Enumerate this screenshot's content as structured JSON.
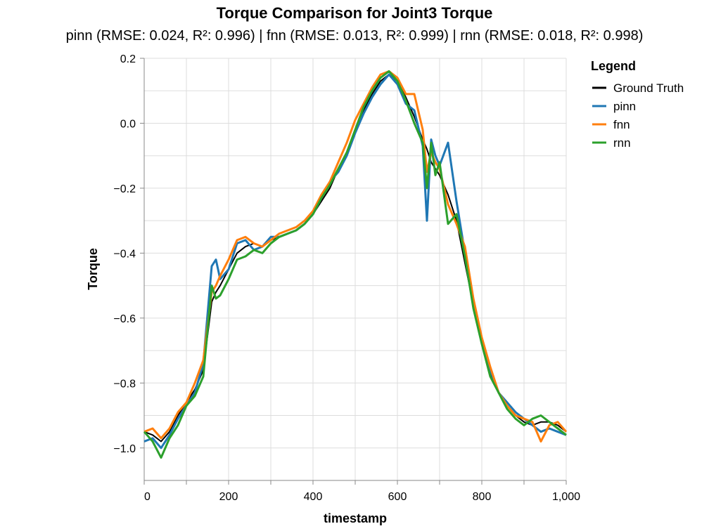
{
  "chart_data": {
    "type": "line",
    "title": "Torque Comparison for Joint3 Torque",
    "subtitle": "pinn (RMSE: 0.024, R²: 0.996) | fnn (RMSE: 0.013, R²: 0.999) | rnn (RMSE: 0.018, R²: 0.998)",
    "xlabel": "timestamp",
    "ylabel": "Torque",
    "xlim": [
      0,
      1000
    ],
    "ylim": [
      -1.1,
      0.2
    ],
    "xticks": [
      0,
      200,
      400,
      600,
      800,
      1000
    ],
    "xtick_labels": [
      "0",
      "200",
      "400",
      "600",
      "800",
      "1,000"
    ],
    "yticks": [
      0.2,
      0.0,
      -0.2,
      -0.4,
      -0.6,
      -0.8,
      -1.0
    ],
    "ytick_labels": [
      "0.2",
      "0.0",
      "−0.2",
      "−0.4",
      "−0.6",
      "−0.8",
      "−1.0"
    ],
    "grid": true,
    "legend": {
      "title": "Legend",
      "placement": "top-right"
    },
    "x": [
      0,
      20,
      40,
      60,
      80,
      100,
      120,
      140,
      160,
      170,
      180,
      200,
      220,
      240,
      260,
      280,
      300,
      320,
      340,
      360,
      380,
      400,
      420,
      440,
      460,
      480,
      500,
      520,
      540,
      560,
      580,
      600,
      620,
      640,
      660,
      670,
      680,
      690,
      700,
      720,
      740,
      760,
      780,
      800,
      820,
      840,
      860,
      880,
      900,
      920,
      940,
      960,
      980,
      1000
    ],
    "series": [
      {
        "name": "Ground Truth",
        "color": "#000000",
        "values": [
          -0.95,
          -0.96,
          -0.98,
          -0.95,
          -0.9,
          -0.86,
          -0.82,
          -0.76,
          -0.55,
          -0.52,
          -0.5,
          -0.45,
          -0.4,
          -0.38,
          -0.37,
          -0.38,
          -0.36,
          -0.35,
          -0.34,
          -0.33,
          -0.31,
          -0.28,
          -0.24,
          -0.2,
          -0.14,
          -0.09,
          -0.02,
          0.04,
          0.09,
          0.13,
          0.15,
          0.13,
          0.08,
          0.02,
          -0.05,
          -0.08,
          -0.12,
          -0.14,
          -0.16,
          -0.22,
          -0.3,
          -0.43,
          -0.56,
          -0.68,
          -0.77,
          -0.83,
          -0.87,
          -0.9,
          -0.92,
          -0.93,
          -0.92,
          -0.92,
          -0.93,
          -0.95
        ]
      },
      {
        "name": "pinn",
        "color": "#1f77b4",
        "values": [
          -0.98,
          -0.97,
          -1.0,
          -0.96,
          -0.91,
          -0.87,
          -0.83,
          -0.74,
          -0.44,
          -0.42,
          -0.48,
          -0.45,
          -0.37,
          -0.36,
          -0.39,
          -0.38,
          -0.35,
          -0.35,
          -0.34,
          -0.33,
          -0.31,
          -0.28,
          -0.23,
          -0.18,
          -0.15,
          -0.1,
          -0.03,
          0.03,
          0.08,
          0.12,
          0.15,
          0.12,
          0.06,
          0.04,
          -0.07,
          -0.3,
          -0.05,
          -0.1,
          -0.13,
          -0.06,
          -0.24,
          -0.4,
          -0.55,
          -0.67,
          -0.76,
          -0.83,
          -0.86,
          -0.89,
          -0.91,
          -0.93,
          -0.95,
          -0.94,
          -0.95,
          -0.96
        ]
      },
      {
        "name": "fnn",
        "color": "#ff7f0e",
        "values": [
          -0.95,
          -0.94,
          -0.97,
          -0.94,
          -0.89,
          -0.86,
          -0.8,
          -0.73,
          -0.52,
          -0.5,
          -0.47,
          -0.42,
          -0.36,
          -0.35,
          -0.37,
          -0.38,
          -0.36,
          -0.34,
          -0.33,
          -0.32,
          -0.3,
          -0.27,
          -0.22,
          -0.18,
          -0.12,
          -0.06,
          0.01,
          0.06,
          0.11,
          0.15,
          0.16,
          0.14,
          0.09,
          0.09,
          -0.02,
          -0.15,
          -0.09,
          -0.12,
          -0.14,
          -0.25,
          -0.31,
          -0.38,
          -0.54,
          -0.66,
          -0.75,
          -0.83,
          -0.87,
          -0.9,
          -0.91,
          -0.92,
          -0.98,
          -0.93,
          -0.92,
          -0.95
        ]
      },
      {
        "name": "rnn",
        "color": "#2ca02c",
        "values": [
          -0.95,
          -0.98,
          -1.03,
          -0.97,
          -0.93,
          -0.87,
          -0.84,
          -0.78,
          -0.5,
          -0.54,
          -0.53,
          -0.48,
          -0.42,
          -0.41,
          -0.39,
          -0.4,
          -0.37,
          -0.35,
          -0.34,
          -0.33,
          -0.31,
          -0.28,
          -0.23,
          -0.19,
          -0.14,
          -0.09,
          -0.02,
          0.05,
          0.1,
          0.14,
          0.16,
          0.13,
          0.07,
          0.0,
          -0.06,
          -0.2,
          -0.06,
          -0.16,
          -0.12,
          -0.31,
          -0.28,
          -0.41,
          -0.57,
          -0.68,
          -0.78,
          -0.83,
          -0.88,
          -0.91,
          -0.93,
          -0.91,
          -0.9,
          -0.92,
          -0.94,
          -0.96
        ]
      }
    ]
  }
}
